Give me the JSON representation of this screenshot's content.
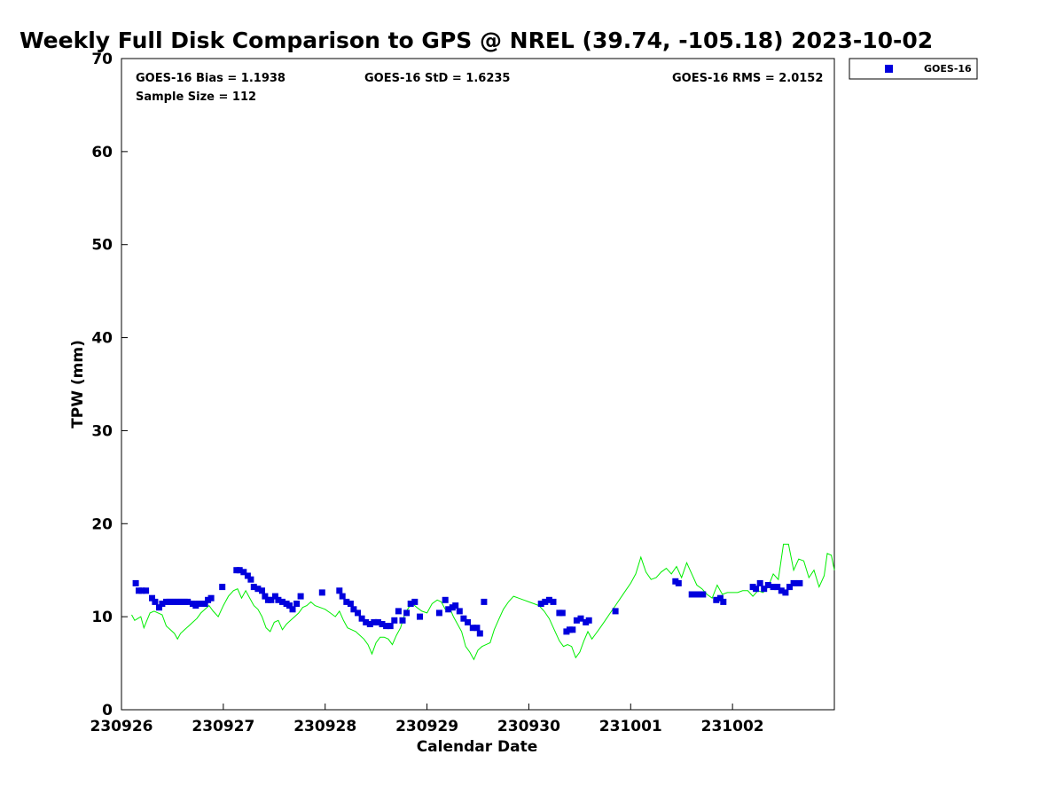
{
  "chart_data": {
    "type": "scatter",
    "title": "Weekly Full Disk Comparison to GPS @ NREL (39.74, -105.18) 2023-10-02",
    "xlabel": "Calendar Date",
    "ylabel": "TPW (mm)",
    "xlim": [
      "230926",
      "231003"
    ],
    "ylim": [
      0,
      70
    ],
    "yticks": [
      0,
      10,
      20,
      30,
      40,
      50,
      60,
      70
    ],
    "xtick_labels": [
      "230926",
      "230927",
      "230928",
      "230929",
      "230930",
      "231001",
      "231002"
    ],
    "grid": false,
    "legend": {
      "position": "outside-top-right",
      "entries": [
        "GOES-16"
      ]
    },
    "stats": {
      "bias": "GOES-16 Bias = 1.1938",
      "std": "GOES-16 StD = 1.6235",
      "rms": "GOES-16 RMS = 2.0152",
      "sample": "Sample Size = 112"
    },
    "colors": {
      "goes": "#0000dd",
      "gps": "#00ee00"
    },
    "series": [
      {
        "name": "GOES-16",
        "marker": "square",
        "x_days": [
          0.14,
          0.17,
          0.2,
          0.24,
          0.3,
          0.33,
          0.37,
          0.4,
          0.44,
          0.47,
          0.5,
          0.53,
          0.56,
          0.59,
          0.62,
          0.65,
          0.7,
          0.73,
          0.76,
          0.79,
          0.82,
          0.85,
          0.88,
          0.99,
          1.13,
          1.16,
          1.2,
          1.24,
          1.27,
          1.3,
          1.34,
          1.38,
          1.41,
          1.44,
          1.47,
          1.51,
          1.54,
          1.58,
          1.62,
          1.65,
          1.68,
          1.72,
          1.76,
          1.97,
          2.14,
          2.17,
          2.21,
          2.25,
          2.28,
          2.32,
          2.36,
          2.4,
          2.44,
          2.48,
          2.52,
          2.56,
          2.6,
          2.64,
          2.68,
          2.72,
          2.76,
          2.8,
          2.84,
          2.88,
          2.93,
          3.12,
          3.18,
          3.21,
          3.25,
          3.28,
          3.32,
          3.36,
          3.4,
          3.45,
          3.49,
          3.52,
          3.56,
          4.12,
          4.16,
          4.2,
          4.24,
          4.3,
          4.33,
          4.37,
          4.4,
          4.43,
          4.47,
          4.51,
          4.56,
          4.59,
          4.85,
          5.44,
          5.47,
          5.6,
          5.64,
          5.67,
          5.71,
          5.84,
          5.88,
          5.91,
          6.2,
          6.23,
          6.27,
          6.31,
          6.35,
          6.4,
          6.44,
          6.48,
          6.52,
          6.56,
          6.6,
          6.66
        ],
        "values": [
          13.6,
          12.8,
          12.8,
          12.8,
          12.0,
          11.6,
          11.0,
          11.4,
          11.6,
          11.6,
          11.6,
          11.6,
          11.6,
          11.6,
          11.6,
          11.6,
          11.4,
          11.2,
          11.4,
          11.4,
          11.4,
          11.8,
          12.0,
          13.2,
          15.0,
          15.0,
          14.8,
          14.4,
          14.0,
          13.2,
          13.0,
          12.8,
          12.2,
          11.8,
          11.8,
          12.2,
          11.8,
          11.6,
          11.4,
          11.2,
          10.8,
          11.4,
          12.2,
          12.6,
          12.8,
          12.2,
          11.6,
          11.4,
          10.8,
          10.4,
          9.8,
          9.4,
          9.2,
          9.4,
          9.4,
          9.2,
          9.0,
          9.0,
          9.6,
          10.6,
          9.6,
          10.4,
          11.4,
          11.6,
          10.0,
          10.4,
          11.8,
          10.8,
          11.0,
          11.2,
          10.6,
          9.8,
          9.4,
          8.8,
          8.8,
          8.2,
          11.6,
          11.4,
          11.6,
          11.8,
          11.6,
          10.4,
          10.4,
          8.4,
          8.6,
          8.6,
          9.6,
          9.8,
          9.4,
          9.6,
          10.6,
          13.8,
          13.6,
          12.4,
          12.4,
          12.4,
          12.4,
          11.8,
          12.0,
          11.6,
          13.2,
          13.0,
          13.6,
          13.0,
          13.4,
          13.2,
          13.2,
          12.8,
          12.6,
          13.2,
          13.6,
          13.6
        ]
      },
      {
        "name": "GPS",
        "marker": "line",
        "x_days": [
          0.1,
          0.13,
          0.16,
          0.19,
          0.22,
          0.25,
          0.28,
          0.32,
          0.36,
          0.4,
          0.44,
          0.48,
          0.52,
          0.55,
          0.58,
          0.62,
          0.66,
          0.7,
          0.74,
          0.78,
          0.82,
          0.86,
          0.9,
          0.95,
          1.0,
          1.05,
          1.1,
          1.14,
          1.18,
          1.22,
          1.26,
          1.3,
          1.34,
          1.38,
          1.42,
          1.46,
          1.5,
          1.54,
          1.58,
          1.62,
          1.66,
          1.7,
          1.74,
          1.78,
          1.82,
          1.86,
          1.9,
          1.95,
          2.0,
          2.05,
          2.1,
          2.14,
          2.18,
          2.22,
          2.26,
          2.3,
          2.34,
          2.38,
          2.42,
          2.46,
          2.5,
          2.54,
          2.58,
          2.62,
          2.66,
          2.7,
          2.74,
          2.78,
          2.82,
          2.86,
          2.9,
          2.95,
          3.0,
          3.05,
          3.1,
          3.14,
          3.18,
          3.22,
          3.26,
          3.3,
          3.34,
          3.38,
          3.42,
          3.46,
          3.5,
          3.54,
          3.58,
          3.62,
          3.66,
          3.7,
          3.75,
          3.8,
          3.85,
          3.9,
          3.95,
          4.0,
          4.05,
          4.1,
          4.15,
          4.2,
          4.25,
          4.3,
          4.34,
          4.38,
          4.42,
          4.46,
          4.5,
          4.54,
          4.58,
          4.62,
          4.66,
          4.7,
          4.75,
          4.8,
          4.85,
          4.9,
          4.95,
          5.0,
          5.05,
          5.1,
          5.15,
          5.2,
          5.25,
          5.3,
          5.35,
          5.4,
          5.45,
          5.5,
          5.55,
          5.6,
          5.65,
          5.7,
          5.75,
          5.8,
          5.85,
          5.9,
          5.95,
          6.0,
          6.05,
          6.1,
          6.15,
          6.2,
          6.25,
          6.3,
          6.35,
          6.4,
          6.45,
          6.5,
          6.55,
          6.6,
          6.65,
          6.7,
          6.75,
          6.8,
          6.85,
          6.9,
          6.93,
          6.97,
          7.0
        ],
        "values": [
          10.2,
          9.6,
          9.8,
          10.0,
          8.8,
          9.6,
          10.4,
          10.6,
          10.4,
          10.2,
          9.0,
          8.6,
          8.2,
          7.6,
          8.2,
          8.6,
          9.0,
          9.4,
          9.8,
          10.4,
          10.8,
          11.2,
          10.6,
          10.0,
          11.2,
          12.2,
          12.8,
          13.0,
          12.0,
          12.8,
          12.0,
          11.2,
          10.8,
          10.0,
          8.8,
          8.4,
          9.4,
          9.6,
          8.6,
          9.2,
          9.6,
          10.0,
          10.4,
          11.0,
          11.2,
          11.6,
          11.2,
          11.0,
          10.8,
          10.4,
          10.0,
          10.6,
          9.6,
          8.8,
          8.6,
          8.4,
          8.0,
          7.6,
          7.0,
          6.0,
          7.2,
          7.8,
          7.8,
          7.6,
          7.0,
          8.0,
          8.8,
          10.2,
          11.0,
          11.4,
          11.0,
          10.6,
          10.4,
          11.4,
          11.8,
          11.6,
          10.8,
          11.0,
          10.0,
          9.2,
          8.4,
          6.8,
          6.2,
          5.4,
          6.4,
          6.8,
          7.0,
          7.2,
          8.6,
          9.6,
          10.8,
          11.6,
          12.2,
          12.0,
          11.8,
          11.6,
          11.4,
          11.2,
          10.6,
          9.8,
          8.6,
          7.4,
          6.8,
          7.0,
          6.8,
          5.6,
          6.2,
          7.4,
          8.4,
          7.6,
          8.2,
          8.8,
          9.6,
          10.4,
          11.2,
          12.0,
          12.8,
          13.6,
          14.6,
          16.4,
          14.8,
          14.0,
          14.2,
          14.8,
          15.2,
          14.6,
          15.4,
          14.2,
          15.8,
          14.6,
          13.4,
          13.0,
          12.4,
          12.0,
          13.4,
          12.4,
          12.6,
          12.6,
          12.6,
          12.8,
          12.8,
          12.2,
          12.8,
          12.6,
          13.2,
          14.6,
          14.0,
          17.8,
          17.8,
          15.0,
          16.2,
          16.0,
          14.2,
          15.0,
          13.2,
          14.4,
          16.8,
          16.6,
          15.0
        ]
      }
    ]
  }
}
